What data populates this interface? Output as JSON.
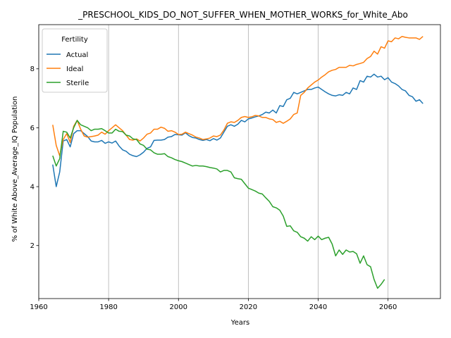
{
  "chart_data": {
    "type": "line",
    "title": "_PRESCHOOL_KIDS_DO_NOT_SUFFER_WHEN_MOTHER_WORKS_for_White_Abo",
    "xlabel": "Years",
    "ylabel": "% of White Above_Average_IQ Population",
    "xlim": [
      1960,
      2075
    ],
    "ylim": [
      0.2,
      9.5
    ],
    "x_ticks": [
      1960,
      1980,
      2000,
      2020,
      2040,
      2060
    ],
    "y_ticks": [
      2,
      4,
      6,
      8
    ],
    "grid": "vertical",
    "legend": {
      "title": "Fertility",
      "placement": "top-left"
    },
    "series": [
      {
        "name": "Actual",
        "color": "#1f77b4",
        "x": [
          1964,
          1965,
          1966,
          1967,
          1968,
          1969,
          1970,
          1971,
          1972,
          1973,
          1974,
          1975,
          1976,
          1977,
          1978,
          1979,
          1980,
          1981,
          1982,
          1983,
          1984,
          1985,
          1986,
          1987,
          1988,
          1989,
          1990,
          1991,
          1992,
          1993,
          1994,
          1995,
          1996,
          1997,
          1998,
          1999,
          2000,
          2001,
          2002,
          2003,
          2004,
          2005,
          2006,
          2007,
          2008,
          2009,
          2010,
          2011,
          2012,
          2013,
          2014,
          2015,
          2016,
          2017,
          2018,
          2019,
          2020,
          2021,
          2022,
          2023,
          2024,
          2025,
          2026,
          2027,
          2028,
          2029,
          2030,
          2031,
          2032,
          2033,
          2034,
          2035,
          2036,
          2037,
          2038,
          2039,
          2040,
          2041,
          2042,
          2043,
          2044,
          2045,
          2046,
          2047,
          2048,
          2049,
          2050,
          2051,
          2052,
          2053,
          2054,
          2055,
          2056,
          2057,
          2058,
          2059,
          2060,
          2061,
          2062,
          2063,
          2064,
          2065,
          2066,
          2067,
          2068,
          2069,
          2070
        ],
        "values": [
          4.75,
          4.0,
          4.5,
          5.55,
          5.6,
          5.35,
          5.8,
          5.9,
          5.9,
          5.8,
          5.7,
          5.55,
          5.52,
          5.52,
          5.57,
          5.47,
          5.52,
          5.48,
          5.55,
          5.38,
          5.25,
          5.2,
          5.1,
          5.05,
          5.02,
          5.08,
          5.17,
          5.3,
          5.35,
          5.57,
          5.58,
          5.58,
          5.6,
          5.68,
          5.7,
          5.77,
          5.76,
          5.75,
          5.83,
          5.73,
          5.67,
          5.65,
          5.6,
          5.57,
          5.6,
          5.56,
          5.63,
          5.58,
          5.65,
          5.85,
          6.05,
          6.1,
          6.05,
          6.12,
          6.25,
          6.2,
          6.3,
          6.33,
          6.37,
          6.4,
          6.45,
          6.53,
          6.5,
          6.6,
          6.5,
          6.75,
          6.72,
          6.95,
          7.0,
          7.2,
          7.15,
          7.2,
          7.25,
          7.3,
          7.3,
          7.35,
          7.38,
          7.3,
          7.22,
          7.15,
          7.1,
          7.08,
          7.12,
          7.1,
          7.2,
          7.15,
          7.35,
          7.3,
          7.6,
          7.55,
          7.75,
          7.72,
          7.82,
          7.72,
          7.75,
          7.63,
          7.7,
          7.55,
          7.5,
          7.42,
          7.3,
          7.25,
          7.1,
          7.05,
          6.9,
          6.95,
          6.82
        ]
      },
      {
        "name": "Ideal",
        "color": "#ff7f0e",
        "x": [
          1964,
          1965,
          1966,
          1967,
          1968,
          1969,
          1970,
          1971,
          1972,
          1973,
          1974,
          1975,
          1976,
          1977,
          1978,
          1979,
          1980,
          1981,
          1982,
          1983,
          1984,
          1985,
          1986,
          1987,
          1988,
          1989,
          1990,
          1991,
          1992,
          1993,
          1994,
          1995,
          1996,
          1997,
          1998,
          1999,
          2000,
          2001,
          2002,
          2003,
          2004,
          2005,
          2006,
          2007,
          2008,
          2009,
          2010,
          2011,
          2012,
          2013,
          2014,
          2015,
          2016,
          2017,
          2018,
          2019,
          2020,
          2021,
          2022,
          2023,
          2024,
          2025,
          2026,
          2027,
          2028,
          2029,
          2030,
          2031,
          2032,
          2033,
          2034,
          2035,
          2036,
          2037,
          2038,
          2039,
          2040,
          2041,
          2042,
          2043,
          2044,
          2045,
          2046,
          2047,
          2048,
          2049,
          2050,
          2051,
          2052,
          2053,
          2054,
          2055,
          2056,
          2057,
          2058,
          2059,
          2060,
          2061,
          2062,
          2063,
          2064,
          2065,
          2066,
          2067,
          2068,
          2069,
          2070
        ],
        "values": [
          6.1,
          5.4,
          5.05,
          5.6,
          5.8,
          5.5,
          6.05,
          6.25,
          5.95,
          5.72,
          5.68,
          5.7,
          5.72,
          5.75,
          5.85,
          5.78,
          5.9,
          6.0,
          6.1,
          6.0,
          5.9,
          5.75,
          5.6,
          5.58,
          5.62,
          5.55,
          5.65,
          5.78,
          5.82,
          5.95,
          5.95,
          6.02,
          5.98,
          5.88,
          5.9,
          5.85,
          5.77,
          5.78,
          5.85,
          5.8,
          5.75,
          5.68,
          5.65,
          5.6,
          5.62,
          5.65,
          5.72,
          5.7,
          5.75,
          5.92,
          6.15,
          6.2,
          6.18,
          6.25,
          6.35,
          6.38,
          6.35,
          6.37,
          6.42,
          6.4,
          6.35,
          6.35,
          6.3,
          6.28,
          6.18,
          6.22,
          6.15,
          6.22,
          6.3,
          6.45,
          6.5,
          7.1,
          7.2,
          7.35,
          7.45,
          7.55,
          7.62,
          7.72,
          7.8,
          7.9,
          7.95,
          7.98,
          8.05,
          8.05,
          8.05,
          8.12,
          8.1,
          8.15,
          8.18,
          8.22,
          8.35,
          8.42,
          8.6,
          8.5,
          8.75,
          8.7,
          8.95,
          8.92,
          9.05,
          9.02,
          9.1,
          9.07,
          9.05,
          9.05,
          9.05,
          9.0,
          9.1
        ]
      },
      {
        "name": "Sterile",
        "color": "#2ca02c",
        "x": [
          1964,
          1965,
          1966,
          1967,
          1968,
          1969,
          1970,
          1971,
          1972,
          1973,
          1974,
          1975,
          1976,
          1977,
          1978,
          1979,
          1980,
          1981,
          1982,
          1983,
          1984,
          1985,
          1986,
          1987,
          1988,
          1989,
          1990,
          1991,
          1992,
          1993,
          1994,
          1995,
          1996,
          1997,
          1998,
          1999,
          2000,
          2001,
          2002,
          2003,
          2004,
          2005,
          2006,
          2007,
          2008,
          2009,
          2010,
          2011,
          2012,
          2013,
          2014,
          2015,
          2016,
          2017,
          2018,
          2019,
          2020,
          2021,
          2022,
          2023,
          2024,
          2025,
          2026,
          2027,
          2028,
          2029,
          2030,
          2031,
          2032,
          2033,
          2034,
          2035,
          2036,
          2037,
          2038,
          2039,
          2040,
          2041,
          2042,
          2043,
          2044,
          2045,
          2046,
          2047,
          2048,
          2049,
          2050,
          2051,
          2052,
          2053,
          2054,
          2055,
          2056,
          2057,
          2058,
          2059
        ],
        "values": [
          5.05,
          4.7,
          4.95,
          5.88,
          5.85,
          5.65,
          6.0,
          6.25,
          6.1,
          6.05,
          6.0,
          5.9,
          5.95,
          5.95,
          5.97,
          5.9,
          5.82,
          5.82,
          5.95,
          5.88,
          5.87,
          5.75,
          5.72,
          5.62,
          5.6,
          5.45,
          5.4,
          5.27,
          5.25,
          5.15,
          5.1,
          5.1,
          5.12,
          5.02,
          4.98,
          4.92,
          4.88,
          4.85,
          4.8,
          4.75,
          4.7,
          4.72,
          4.7,
          4.7,
          4.68,
          4.65,
          4.63,
          4.6,
          4.5,
          4.55,
          4.55,
          4.5,
          4.3,
          4.27,
          4.25,
          4.1,
          3.95,
          3.9,
          3.85,
          3.78,
          3.75,
          3.62,
          3.5,
          3.32,
          3.28,
          3.2,
          3.0,
          2.65,
          2.67,
          2.5,
          2.45,
          2.3,
          2.25,
          2.15,
          2.3,
          2.2,
          2.32,
          2.2,
          2.25,
          2.28,
          2.05,
          1.65,
          1.85,
          1.7,
          1.85,
          1.78,
          1.8,
          1.72,
          1.4,
          1.65,
          1.35,
          1.28,
          0.85,
          0.55,
          0.68,
          0.85
        ]
      }
    ]
  }
}
